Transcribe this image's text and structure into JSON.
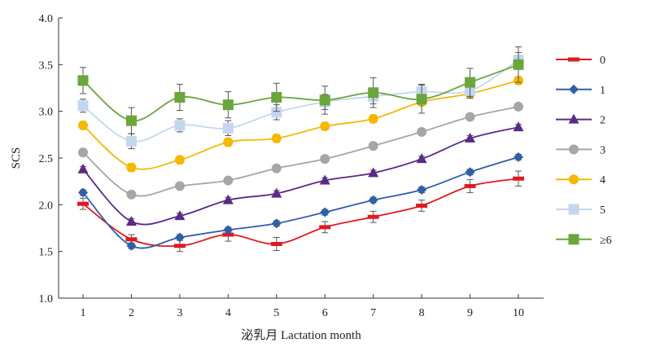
{
  "chart_data": {
    "type": "line",
    "xlabel": "泌乳月 Lactation month",
    "ylabel": "SCS",
    "x": [
      1,
      2,
      3,
      4,
      5,
      6,
      7,
      8,
      9,
      10
    ],
    "ylim": [
      1.0,
      4.0
    ],
    "yticks": [
      "1.0",
      "1.5",
      "2.0",
      "2.5",
      "3.0",
      "3.5",
      "4.0"
    ],
    "grid": false,
    "legend_position": "right",
    "series": [
      {
        "name": "0",
        "color": "#e0191f",
        "marker": "dash",
        "values": [
          2.01,
          1.63,
          1.56,
          1.68,
          1.58,
          1.76,
          1.87,
          1.99,
          2.2,
          2.28
        ],
        "errors": [
          0.06,
          0.05,
          0.06,
          0.07,
          0.07,
          0.06,
          0.06,
          0.06,
          0.07,
          0.08
        ]
      },
      {
        "name": "1",
        "color": "#2e5fa8",
        "marker": "diamond",
        "values": [
          2.13,
          1.56,
          1.65,
          1.73,
          1.8,
          1.92,
          2.05,
          2.16,
          2.35,
          2.51
        ],
        "errors": [
          0.03,
          0.03,
          0.03,
          0.03,
          0.03,
          0.03,
          0.03,
          0.03,
          0.03,
          0.03
        ]
      },
      {
        "name": "2",
        "color": "#5b2a86",
        "marker": "triangle",
        "values": [
          2.38,
          1.82,
          1.88,
          2.05,
          2.12,
          2.26,
          2.34,
          2.49,
          2.71,
          2.83
        ],
        "errors": [
          0.03,
          0.03,
          0.03,
          0.03,
          0.03,
          0.03,
          0.03,
          0.03,
          0.03,
          0.03
        ]
      },
      {
        "name": "3",
        "color": "#a6a6a6",
        "marker": "circle",
        "values": [
          2.56,
          2.11,
          2.2,
          2.26,
          2.39,
          2.49,
          2.63,
          2.78,
          2.94,
          3.05
        ],
        "errors": [
          0.03,
          0.03,
          0.03,
          0.03,
          0.03,
          0.03,
          0.03,
          0.03,
          0.03,
          0.03
        ]
      },
      {
        "name": "4",
        "color": "#f5b800",
        "marker": "circle",
        "values": [
          2.85,
          2.4,
          2.48,
          2.67,
          2.71,
          2.84,
          2.92,
          3.1,
          3.19,
          3.33
        ],
        "errors": [
          0.04,
          0.04,
          0.04,
          0.04,
          0.04,
          0.04,
          0.04,
          0.04,
          0.04,
          0.04
        ]
      },
      {
        "name": "5",
        "color": "#c4d7ee",
        "marker": "square",
        "values": [
          3.06,
          2.68,
          2.85,
          2.82,
          2.99,
          3.1,
          3.16,
          3.21,
          3.22,
          3.55
        ],
        "errors": [
          0.07,
          0.08,
          0.07,
          0.08,
          0.08,
          0.08,
          0.08,
          0.08,
          0.08,
          0.08
        ]
      },
      {
        "name": "≥6",
        "color": "#6aa63b",
        "marker": "square",
        "values": [
          3.33,
          2.9,
          3.15,
          3.07,
          3.15,
          3.12,
          3.2,
          3.13,
          3.31,
          3.5
        ],
        "errors": [
          0.14,
          0.14,
          0.14,
          0.14,
          0.15,
          0.15,
          0.16,
          0.15,
          0.15,
          0.19
        ]
      }
    ]
  }
}
